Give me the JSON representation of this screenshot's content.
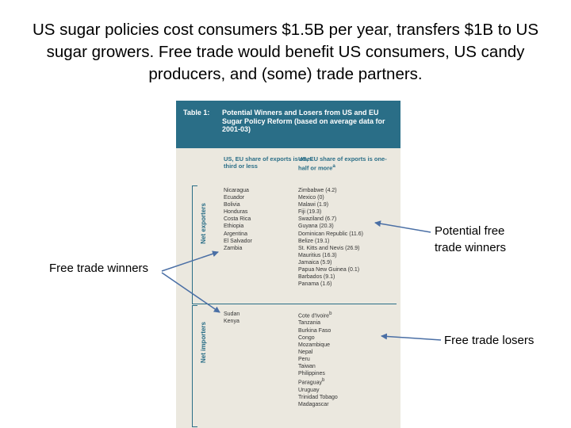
{
  "slide": {
    "title": "US sugar policies cost consumers $1.5B per year, transfers $1B to US sugar growers. Free trade would benefit US consumers, US candy producers, and (some) trade partners."
  },
  "table": {
    "caption_number": "Table 1:",
    "caption_text": "Potential Winners and Losers from US and EU Sugar Policy Reform (based on average data for 2001-03)",
    "col_left": "US, EU share of exports is one-third or less",
    "col_right": "US, EU share of exports is one-half or more",
    "col_right_note": "a",
    "row_exporters": "Net exporters",
    "row_importers": "Net importers",
    "exporters_low_share": [
      "Nicaragua",
      "Ecuador",
      "Bolivia",
      "Honduras",
      "Costa Rica",
      "Ethiopia",
      "Argentina",
      "El Salvador",
      "Zambia"
    ],
    "exporters_high_share": [
      "Zimbabwe (4.2)",
      "Mexico (0)",
      "Malawi (1.9)",
      "Fiji (19.3)",
      "Swaziland (6.7)",
      "Guyana (20.3)",
      "Dominican Republic (11.6)",
      "Belize (19.1)",
      "St. Kitts and Nevis (26.9)",
      "Mauritius (16.3)",
      "Jamaica (5.9)",
      "Papua New Guinea (0.1)",
      "Barbados (9.1)",
      "Panama (1.6)"
    ],
    "importers_low_share": [
      "Sudan",
      "Kenya"
    ],
    "importers_high_share": [
      "Cote d'Ivoire",
      "Tanzania",
      "Burkina Faso",
      "Congo",
      "Mozambique",
      "Nepal",
      "Peru",
      "Taiwan",
      "Philippines",
      "Paraguay",
      "Uruguay",
      "Trinidad Tobago",
      "Madagascar"
    ],
    "superscript_b": "b"
  },
  "annotations": {
    "potential_winners": [
      "Potential free",
      "trade winners"
    ],
    "winners": "Free trade winners",
    "losers": "Free trade losers"
  },
  "colors": {
    "table_header": "#2a6e87",
    "table_body": "#ebe8df",
    "arrow": "#4a6fa5"
  }
}
